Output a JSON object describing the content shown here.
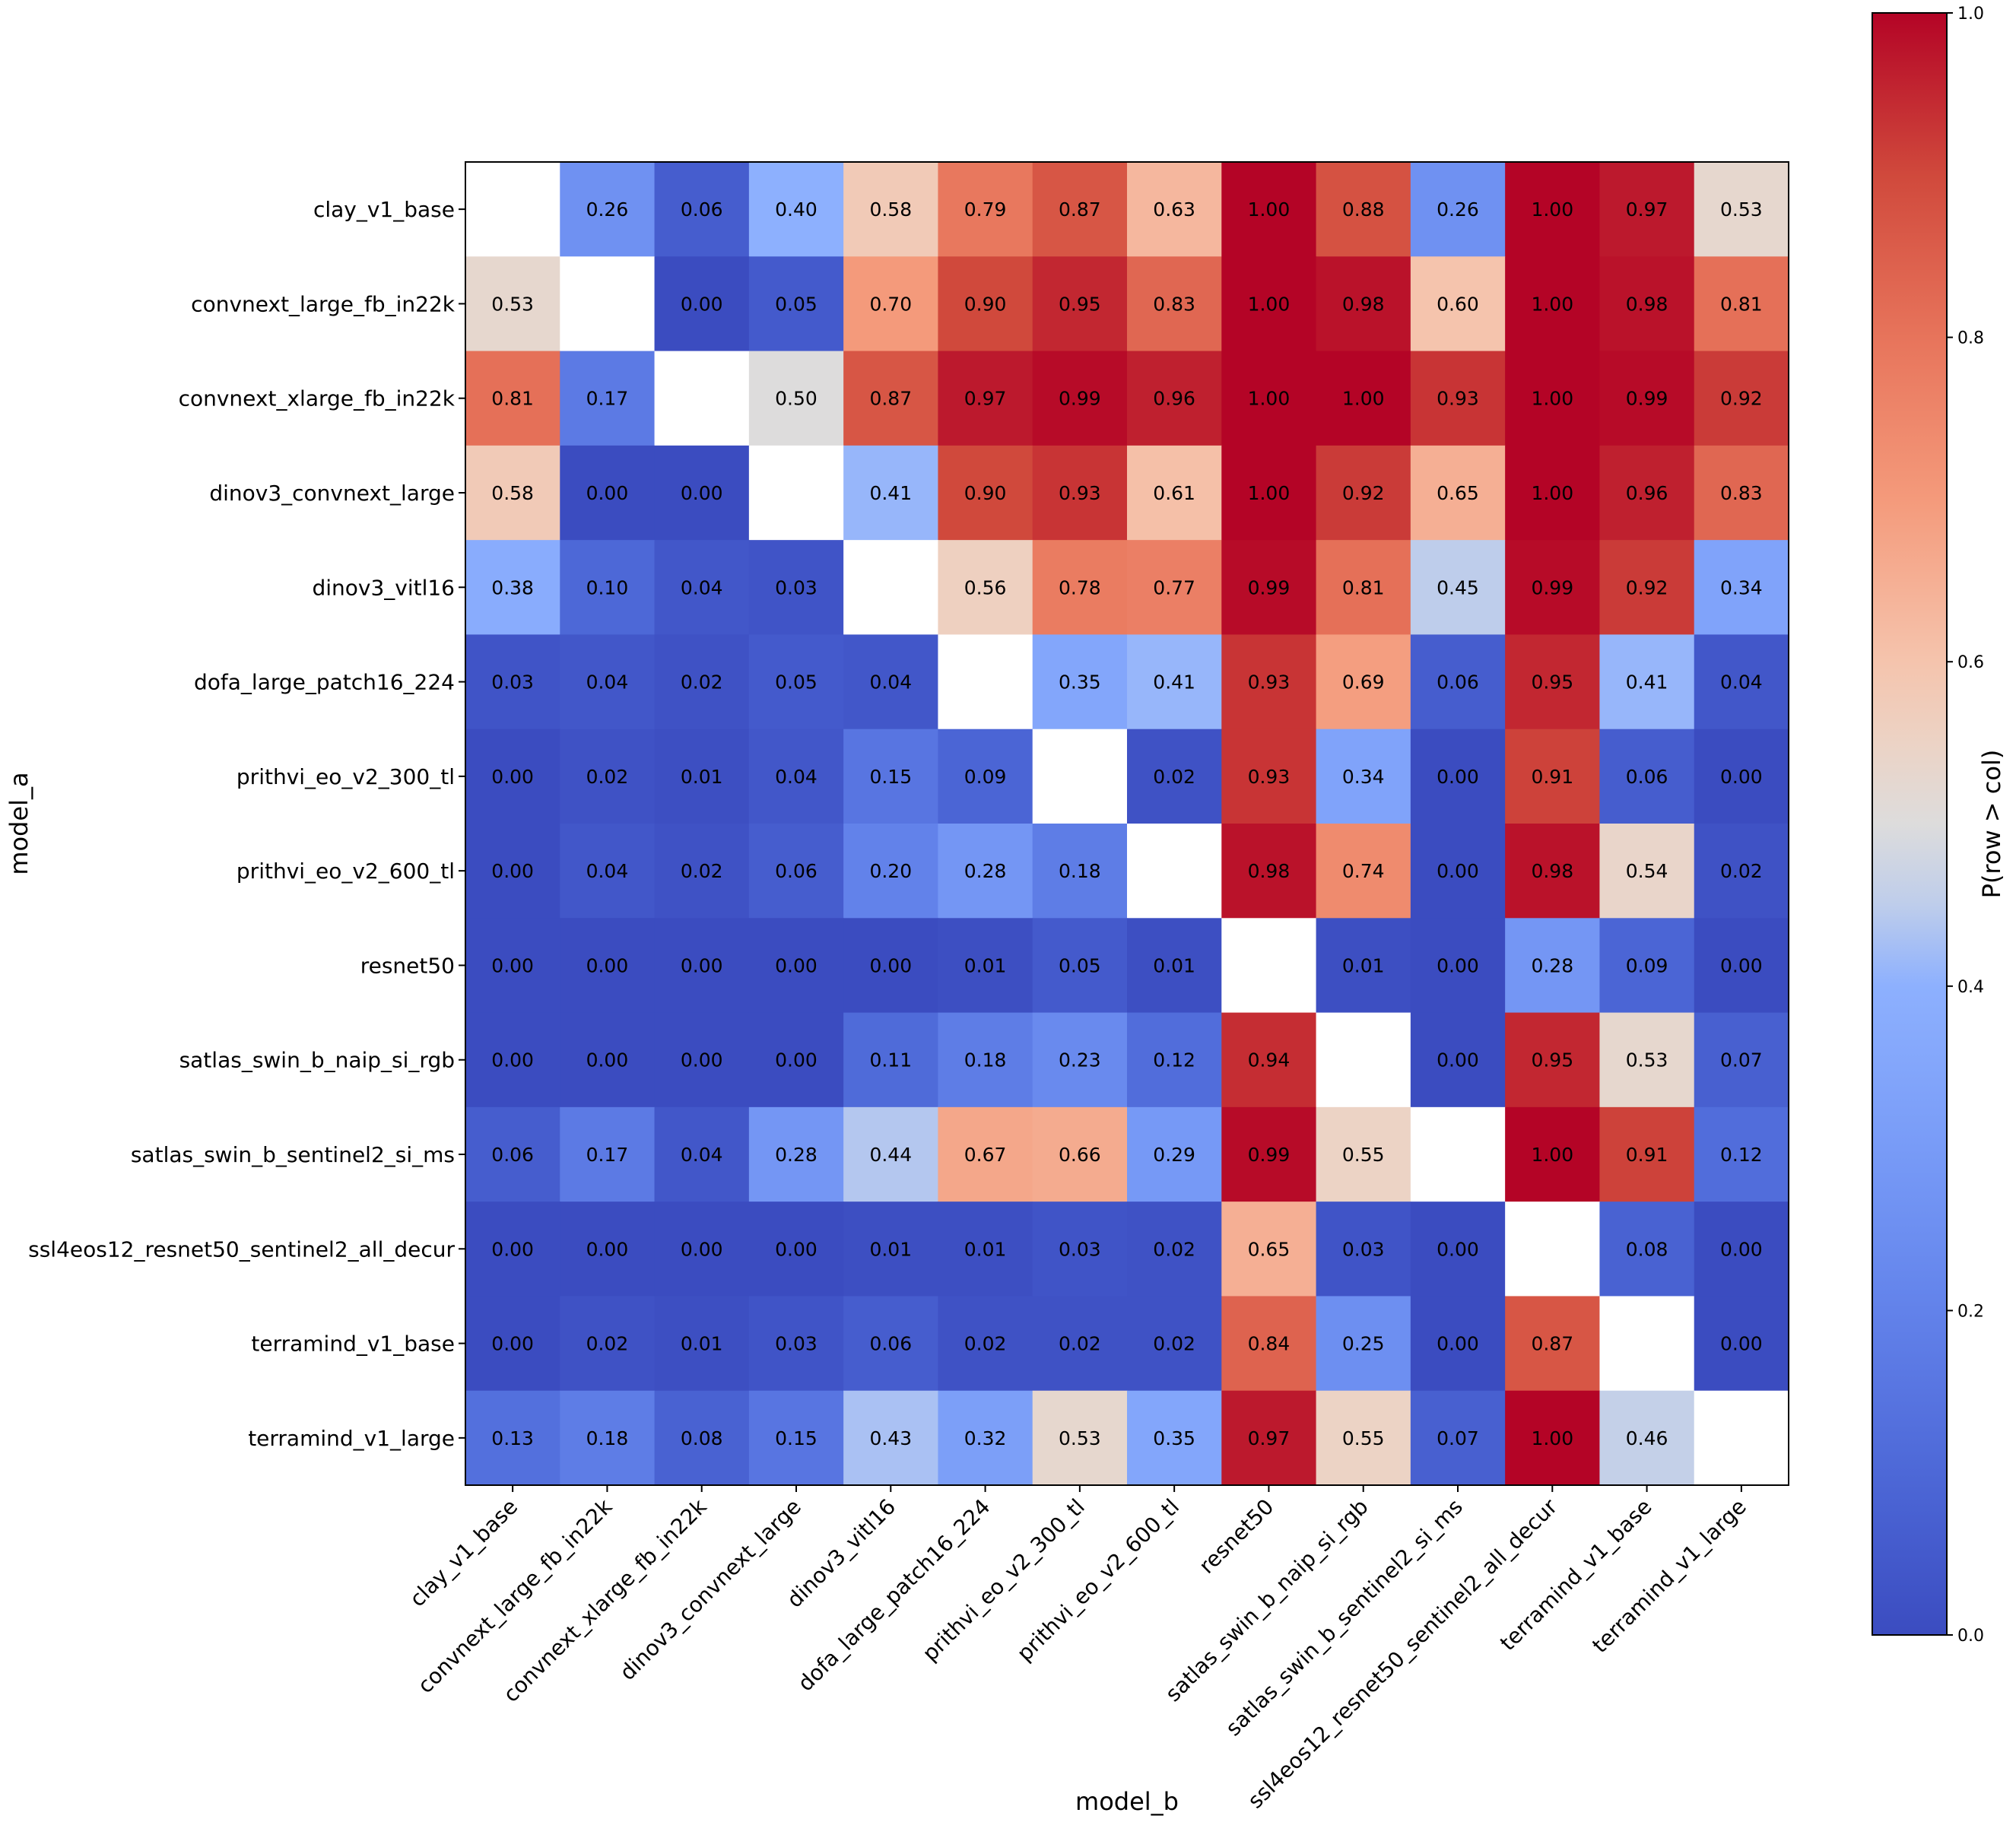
{
  "chart_data": {
    "type": "heatmap",
    "xlabel": "model_b",
    "ylabel": "model_a",
    "rows": [
      "clay_v1_base",
      "convnext_large_fb_in22k",
      "convnext_xlarge_fb_in22k",
      "dinov3_convnext_large",
      "dinov3_vitl16",
      "dofa_large_patch16_224",
      "prithvi_eo_v2_300_tl",
      "prithvi_eo_v2_600_tl",
      "resnet50",
      "satlas_swin_b_naip_si_rgb",
      "satlas_swin_b_sentinel2_si_ms",
      "ssl4eos12_resnet50_sentinel2_all_decur",
      "terramind_v1_base",
      "terramind_v1_large"
    ],
    "columns": [
      "clay_v1_base",
      "convnext_large_fb_in22k",
      "convnext_xlarge_fb_in22k",
      "dinov3_convnext_large",
      "dinov3_vitl16",
      "dofa_large_patch16_224",
      "prithvi_eo_v2_300_tl",
      "prithvi_eo_v2_600_tl",
      "resnet50",
      "satlas_swin_b_naip_si_rgb",
      "satlas_swin_b_sentinel2_si_ms",
      "ssl4eos12_resnet50_sentinel2_all_decur",
      "terramind_v1_base",
      "terramind_v1_large"
    ],
    "values": [
      [
        null,
        0.26,
        0.06,
        0.4,
        0.58,
        0.79,
        0.87,
        0.63,
        1.0,
        0.88,
        0.26,
        1.0,
        0.97,
        0.53
      ],
      [
        0.53,
        null,
        0.0,
        0.05,
        0.7,
        0.9,
        0.95,
        0.83,
        1.0,
        0.98,
        0.6,
        1.0,
        0.98,
        0.81
      ],
      [
        0.81,
        0.17,
        null,
        0.5,
        0.87,
        0.97,
        0.99,
        0.96,
        1.0,
        1.0,
        0.93,
        1.0,
        0.99,
        0.92
      ],
      [
        0.58,
        0.0,
        0.0,
        null,
        0.41,
        0.9,
        0.93,
        0.61,
        1.0,
        0.92,
        0.65,
        1.0,
        0.96,
        0.83
      ],
      [
        0.38,
        0.1,
        0.04,
        0.03,
        null,
        0.56,
        0.78,
        0.77,
        0.99,
        0.81,
        0.45,
        0.99,
        0.92,
        0.34
      ],
      [
        0.03,
        0.04,
        0.02,
        0.05,
        0.04,
        null,
        0.35,
        0.41,
        0.93,
        0.69,
        0.06,
        0.95,
        0.41,
        0.04
      ],
      [
        0.0,
        0.02,
        0.01,
        0.04,
        0.15,
        0.09,
        null,
        0.02,
        0.93,
        0.34,
        0.0,
        0.91,
        0.06,
        0.0
      ],
      [
        0.0,
        0.04,
        0.02,
        0.06,
        0.2,
        0.28,
        0.18,
        null,
        0.98,
        0.74,
        0.0,
        0.98,
        0.54,
        0.02
      ],
      [
        0.0,
        0.0,
        0.0,
        0.0,
        0.0,
        0.01,
        0.05,
        0.01,
        null,
        0.01,
        0.0,
        0.28,
        0.09,
        0.0
      ],
      [
        0.0,
        0.0,
        0.0,
        0.0,
        0.11,
        0.18,
        0.23,
        0.12,
        0.94,
        null,
        0.0,
        0.95,
        0.53,
        0.07
      ],
      [
        0.06,
        0.17,
        0.04,
        0.28,
        0.44,
        0.67,
        0.66,
        0.29,
        0.99,
        0.55,
        null,
        1.0,
        0.91,
        0.12
      ],
      [
        0.0,
        0.0,
        0.0,
        0.0,
        0.01,
        0.01,
        0.03,
        0.02,
        0.65,
        0.03,
        0.0,
        null,
        0.08,
        0.0
      ],
      [
        0.0,
        0.02,
        0.01,
        0.03,
        0.06,
        0.02,
        0.02,
        0.02,
        0.84,
        0.25,
        0.0,
        0.87,
        null,
        0.0
      ],
      [
        0.13,
        0.18,
        0.08,
        0.15,
        0.43,
        0.32,
        0.53,
        0.35,
        0.97,
        0.55,
        0.07,
        1.0,
        0.46,
        null
      ]
    ],
    "colormap": "coolwarm",
    "vmin": 0.0,
    "vmax": 1.0,
    "colorbar": {
      "label": "P(row > col)",
      "ticks": [
        "0.0",
        "0.2",
        "0.4",
        "0.6",
        "0.8",
        "1.0"
      ]
    },
    "value_format": "2 decimals",
    "diagonal": "empty",
    "legend": "colorbar on right"
  }
}
